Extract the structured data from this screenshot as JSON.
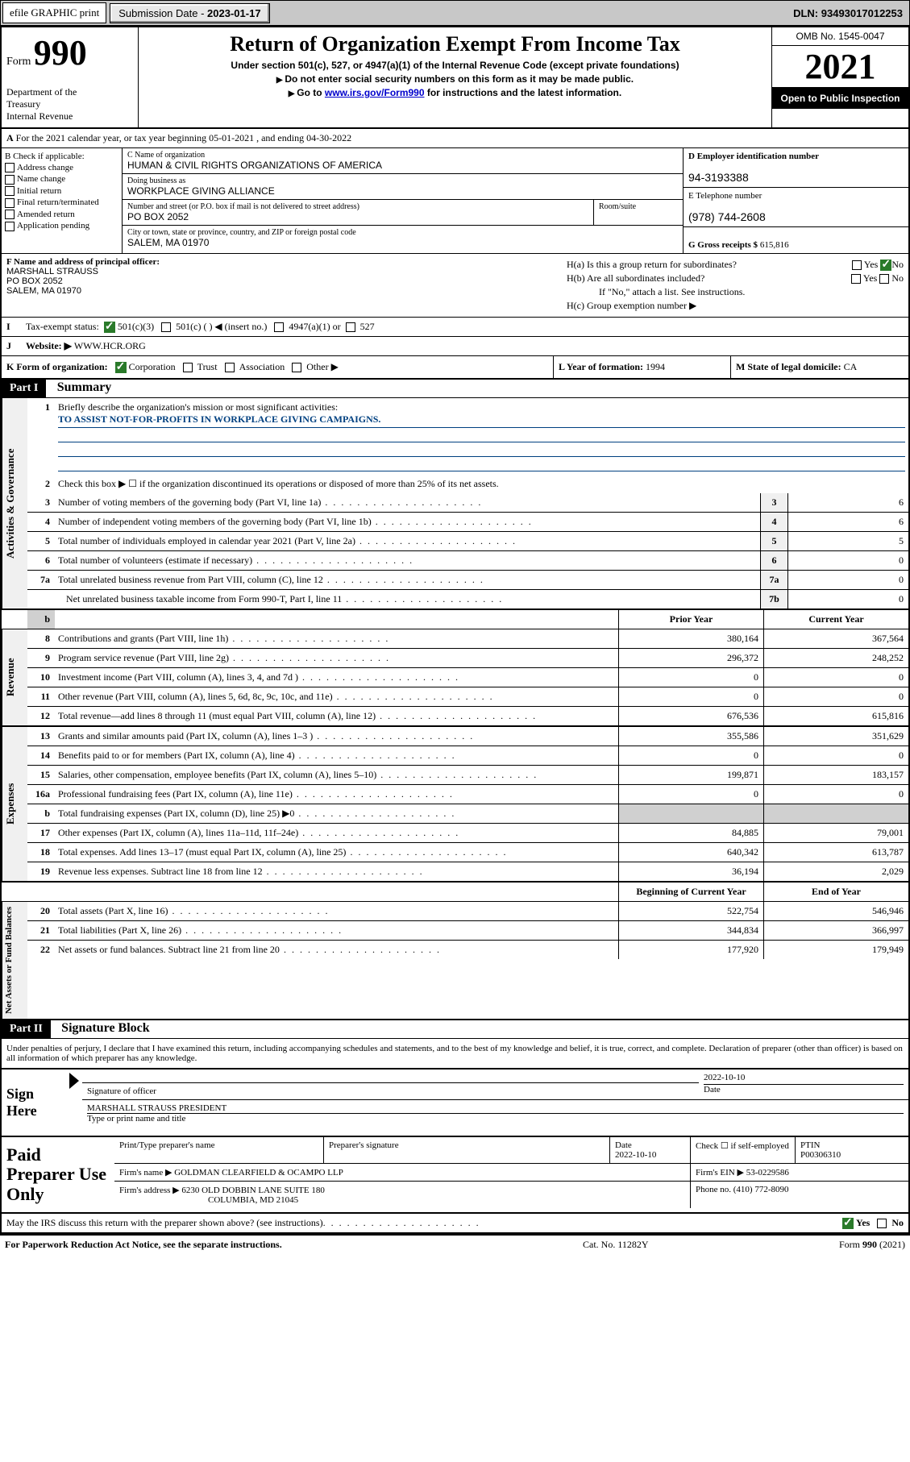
{
  "topbar": {
    "efile": "efile GRAPHIC print",
    "submission_label": "Submission Date - ",
    "submission_date": "2023-01-17",
    "dln_label": "DLN: ",
    "dln": "93493017012253"
  },
  "header": {
    "form_word": "Form",
    "form_number": "990",
    "department": "Department of the Treasury\nInternal Revenue Service",
    "title": "Return of Organization Exempt From Income Tax",
    "subtitle1": "Under section 501(c), 527, or 4947(a)(1) of the Internal Revenue Code (except private foundations)",
    "subtitle2": "Do not enter social security numbers on this form as it may be made public.",
    "subtitle3_pre": "Go to ",
    "subtitle3_link": "www.irs.gov/Form990",
    "subtitle3_post": " for instructions and the latest information.",
    "omb": "OMB No. 1545-0047",
    "year": "2021",
    "open_public": "Open to Public Inspection"
  },
  "row_a": "For the 2021 calendar year, or tax year beginning 05-01-2021   , and ending 04-30-2022",
  "box_b": {
    "title": "B Check if applicable:",
    "items": [
      "Address change",
      "Name change",
      "Initial return",
      "Final return/terminated",
      "Amended return",
      "Application pending"
    ]
  },
  "box_c": {
    "name_label": "C Name of organization",
    "name": "HUMAN & CIVIL RIGHTS ORGANIZATIONS OF AMERICA",
    "dba_label": "Doing business as",
    "dba": "WORKPLACE GIVING ALLIANCE",
    "street_label": "Number and street (or P.O. box if mail is not delivered to street address)",
    "room_label": "Room/suite",
    "street": "PO BOX 2052",
    "city_label": "City or town, state or province, country, and ZIP or foreign postal code",
    "city": "SALEM, MA  01970"
  },
  "box_d": {
    "ein_label": "D Employer identification number",
    "ein": "94-3193388",
    "phone_label": "E Telephone number",
    "phone": "(978) 744-2608",
    "gross_label": "G Gross receipts $ ",
    "gross": "615,816"
  },
  "box_f": {
    "label": "F Name and address of principal officer:",
    "name": "MARSHALL STRAUSS",
    "addr1": "PO BOX 2052",
    "addr2": "SALEM, MA  01970"
  },
  "box_h": {
    "ha_label": "H(a)  Is this a group return for subordinates?",
    "hb_label": "H(b)  Are all subordinates included?",
    "hb_note": "If \"No,\" attach a list. See instructions.",
    "hc_label": "H(c)  Group exemption number ▶",
    "yes": "Yes",
    "no": "No"
  },
  "row_i": {
    "label": "Tax-exempt status:",
    "opts": [
      "501(c)(3)",
      "501(c) (  ) ◀ (insert no.)",
      "4947(a)(1) or",
      "527"
    ]
  },
  "row_j": {
    "label": "Website: ▶",
    "value": "WWW.HCR.ORG"
  },
  "row_k": {
    "label": "K Form of organization:",
    "opts": [
      "Corporation",
      "Trust",
      "Association",
      "Other ▶"
    ]
  },
  "row_l": {
    "label": "L Year of formation: ",
    "value": "1994"
  },
  "row_m": {
    "label": "M State of legal domicile: ",
    "value": "CA"
  },
  "part1": {
    "header": "Part I",
    "title": "Summary"
  },
  "governance": {
    "line1_label": "Briefly describe the organization's mission or most significant activities:",
    "line1_text": "TO ASSIST NOT-FOR-PROFITS IN WORKPLACE GIVING CAMPAIGNS.",
    "line2": "Check this box ▶ ☐ if the organization discontinued its operations or disposed of more than 25% of its net assets.",
    "rows": [
      {
        "n": "3",
        "t": "Number of voting members of the governing body (Part VI, line 1a)",
        "b": "3",
        "v": "6"
      },
      {
        "n": "4",
        "t": "Number of independent voting members of the governing body (Part VI, line 1b)",
        "b": "4",
        "v": "6"
      },
      {
        "n": "5",
        "t": "Total number of individuals employed in calendar year 2021 (Part V, line 2a)",
        "b": "5",
        "v": "5"
      },
      {
        "n": "6",
        "t": "Total number of volunteers (estimate if necessary)",
        "b": "6",
        "v": "0"
      },
      {
        "n": "7a",
        "t": "Total unrelated business revenue from Part VIII, column (C), line 12",
        "b": "7a",
        "v": "0"
      },
      {
        "n": "b",
        "t": "Net unrelated business taxable income from Form 990-T, Part I, line 11",
        "b": "7b",
        "v": "0",
        "pad": true
      }
    ]
  },
  "finhdr": {
    "py": "Prior Year",
    "cy": "Current Year"
  },
  "revenue": {
    "tab": "Revenue",
    "rows": [
      {
        "n": "8",
        "t": "Contributions and grants (Part VIII, line 1h)",
        "py": "380,164",
        "cy": "367,564"
      },
      {
        "n": "9",
        "t": "Program service revenue (Part VIII, line 2g)",
        "py": "296,372",
        "cy": "248,252"
      },
      {
        "n": "10",
        "t": "Investment income (Part VIII, column (A), lines 3, 4, and 7d )",
        "py": "0",
        "cy": "0"
      },
      {
        "n": "11",
        "t": "Other revenue (Part VIII, column (A), lines 5, 6d, 8c, 9c, 10c, and 11e)",
        "py": "0",
        "cy": "0"
      },
      {
        "n": "12",
        "t": "Total revenue—add lines 8 through 11 (must equal Part VIII, column (A), line 12)",
        "py": "676,536",
        "cy": "615,816"
      }
    ]
  },
  "expenses": {
    "tab": "Expenses",
    "rows": [
      {
        "n": "13",
        "t": "Grants and similar amounts paid (Part IX, column (A), lines 1–3 )",
        "py": "355,586",
        "cy": "351,629"
      },
      {
        "n": "14",
        "t": "Benefits paid to or for members (Part IX, column (A), line 4)",
        "py": "0",
        "cy": "0"
      },
      {
        "n": "15",
        "t": "Salaries, other compensation, employee benefits (Part IX, column (A), lines 5–10)",
        "py": "199,871",
        "cy": "183,157"
      },
      {
        "n": "16a",
        "t": "Professional fundraising fees (Part IX, column (A), line 11e)",
        "py": "0",
        "cy": "0"
      },
      {
        "n": "b",
        "t": "Total fundraising expenses (Part IX, column (D), line 25) ▶0",
        "py": "",
        "cy": "",
        "shade": true,
        "pad": true
      },
      {
        "n": "17",
        "t": "Other expenses (Part IX, column (A), lines 11a–11d, 11f–24e)",
        "py": "84,885",
        "cy": "79,001"
      },
      {
        "n": "18",
        "t": "Total expenses. Add lines 13–17 (must equal Part IX, column (A), line 25)",
        "py": "640,342",
        "cy": "613,787"
      },
      {
        "n": "19",
        "t": "Revenue less expenses. Subtract line 18 from line 12",
        "py": "36,194",
        "cy": "2,029"
      }
    ]
  },
  "nethdr": {
    "py": "Beginning of Current Year",
    "cy": "End of Year"
  },
  "net": {
    "tab": "Net Assets or Fund Balances",
    "rows": [
      {
        "n": "20",
        "t": "Total assets (Part X, line 16)",
        "py": "522,754",
        "cy": "546,946"
      },
      {
        "n": "21",
        "t": "Total liabilities (Part X, line 26)",
        "py": "344,834",
        "cy": "366,997"
      },
      {
        "n": "22",
        "t": "Net assets or fund balances. Subtract line 21 from line 20",
        "py": "177,920",
        "cy": "179,949"
      }
    ]
  },
  "part2": {
    "header": "Part II",
    "title": "Signature Block"
  },
  "sig": {
    "perjury": "Under penalties of perjury, I declare that I have examined this return, including accompanying schedules and statements, and to the best of my knowledge and belief, it is true, correct, and complete. Declaration of preparer (other than officer) is based on all information of which preparer has any knowledge.",
    "sign_here": "Sign Here",
    "sig_officer": "Signature of officer",
    "date": "2022-10-10",
    "date_label": "Date",
    "officer_name": "MARSHALL STRAUSS PRESIDENT",
    "name_label": "Type or print name and title"
  },
  "paid": {
    "title": "Paid Preparer Use Only",
    "h1": "Print/Type preparer's name",
    "h2": "Preparer's signature",
    "h3": "Date",
    "h3v": "2022-10-10",
    "h4": "Check ☐ if self-employed",
    "h5": "PTIN",
    "h5v": "P00306310",
    "firm_name_label": "Firm's name    ▶",
    "firm_name": "GOLDMAN CLEARFIELD & OCAMPO LLP",
    "firm_ein_label": "Firm's EIN ▶",
    "firm_ein": "53-0229586",
    "firm_addr_label": "Firm's address ▶",
    "firm_addr1": "6230 OLD DOBBIN LANE SUITE 180",
    "firm_addr2": "COLUMBIA, MD  21045",
    "phone_label": "Phone no. ",
    "phone": "(410) 772-8090"
  },
  "irs_discuss": "May the IRS discuss this return with the preparer shown above? (see instructions)",
  "footer": {
    "left": "For Paperwork Reduction Act Notice, see the separate instructions.",
    "mid": "Cat. No. 11282Y",
    "right": "Form 990 (2021)"
  }
}
